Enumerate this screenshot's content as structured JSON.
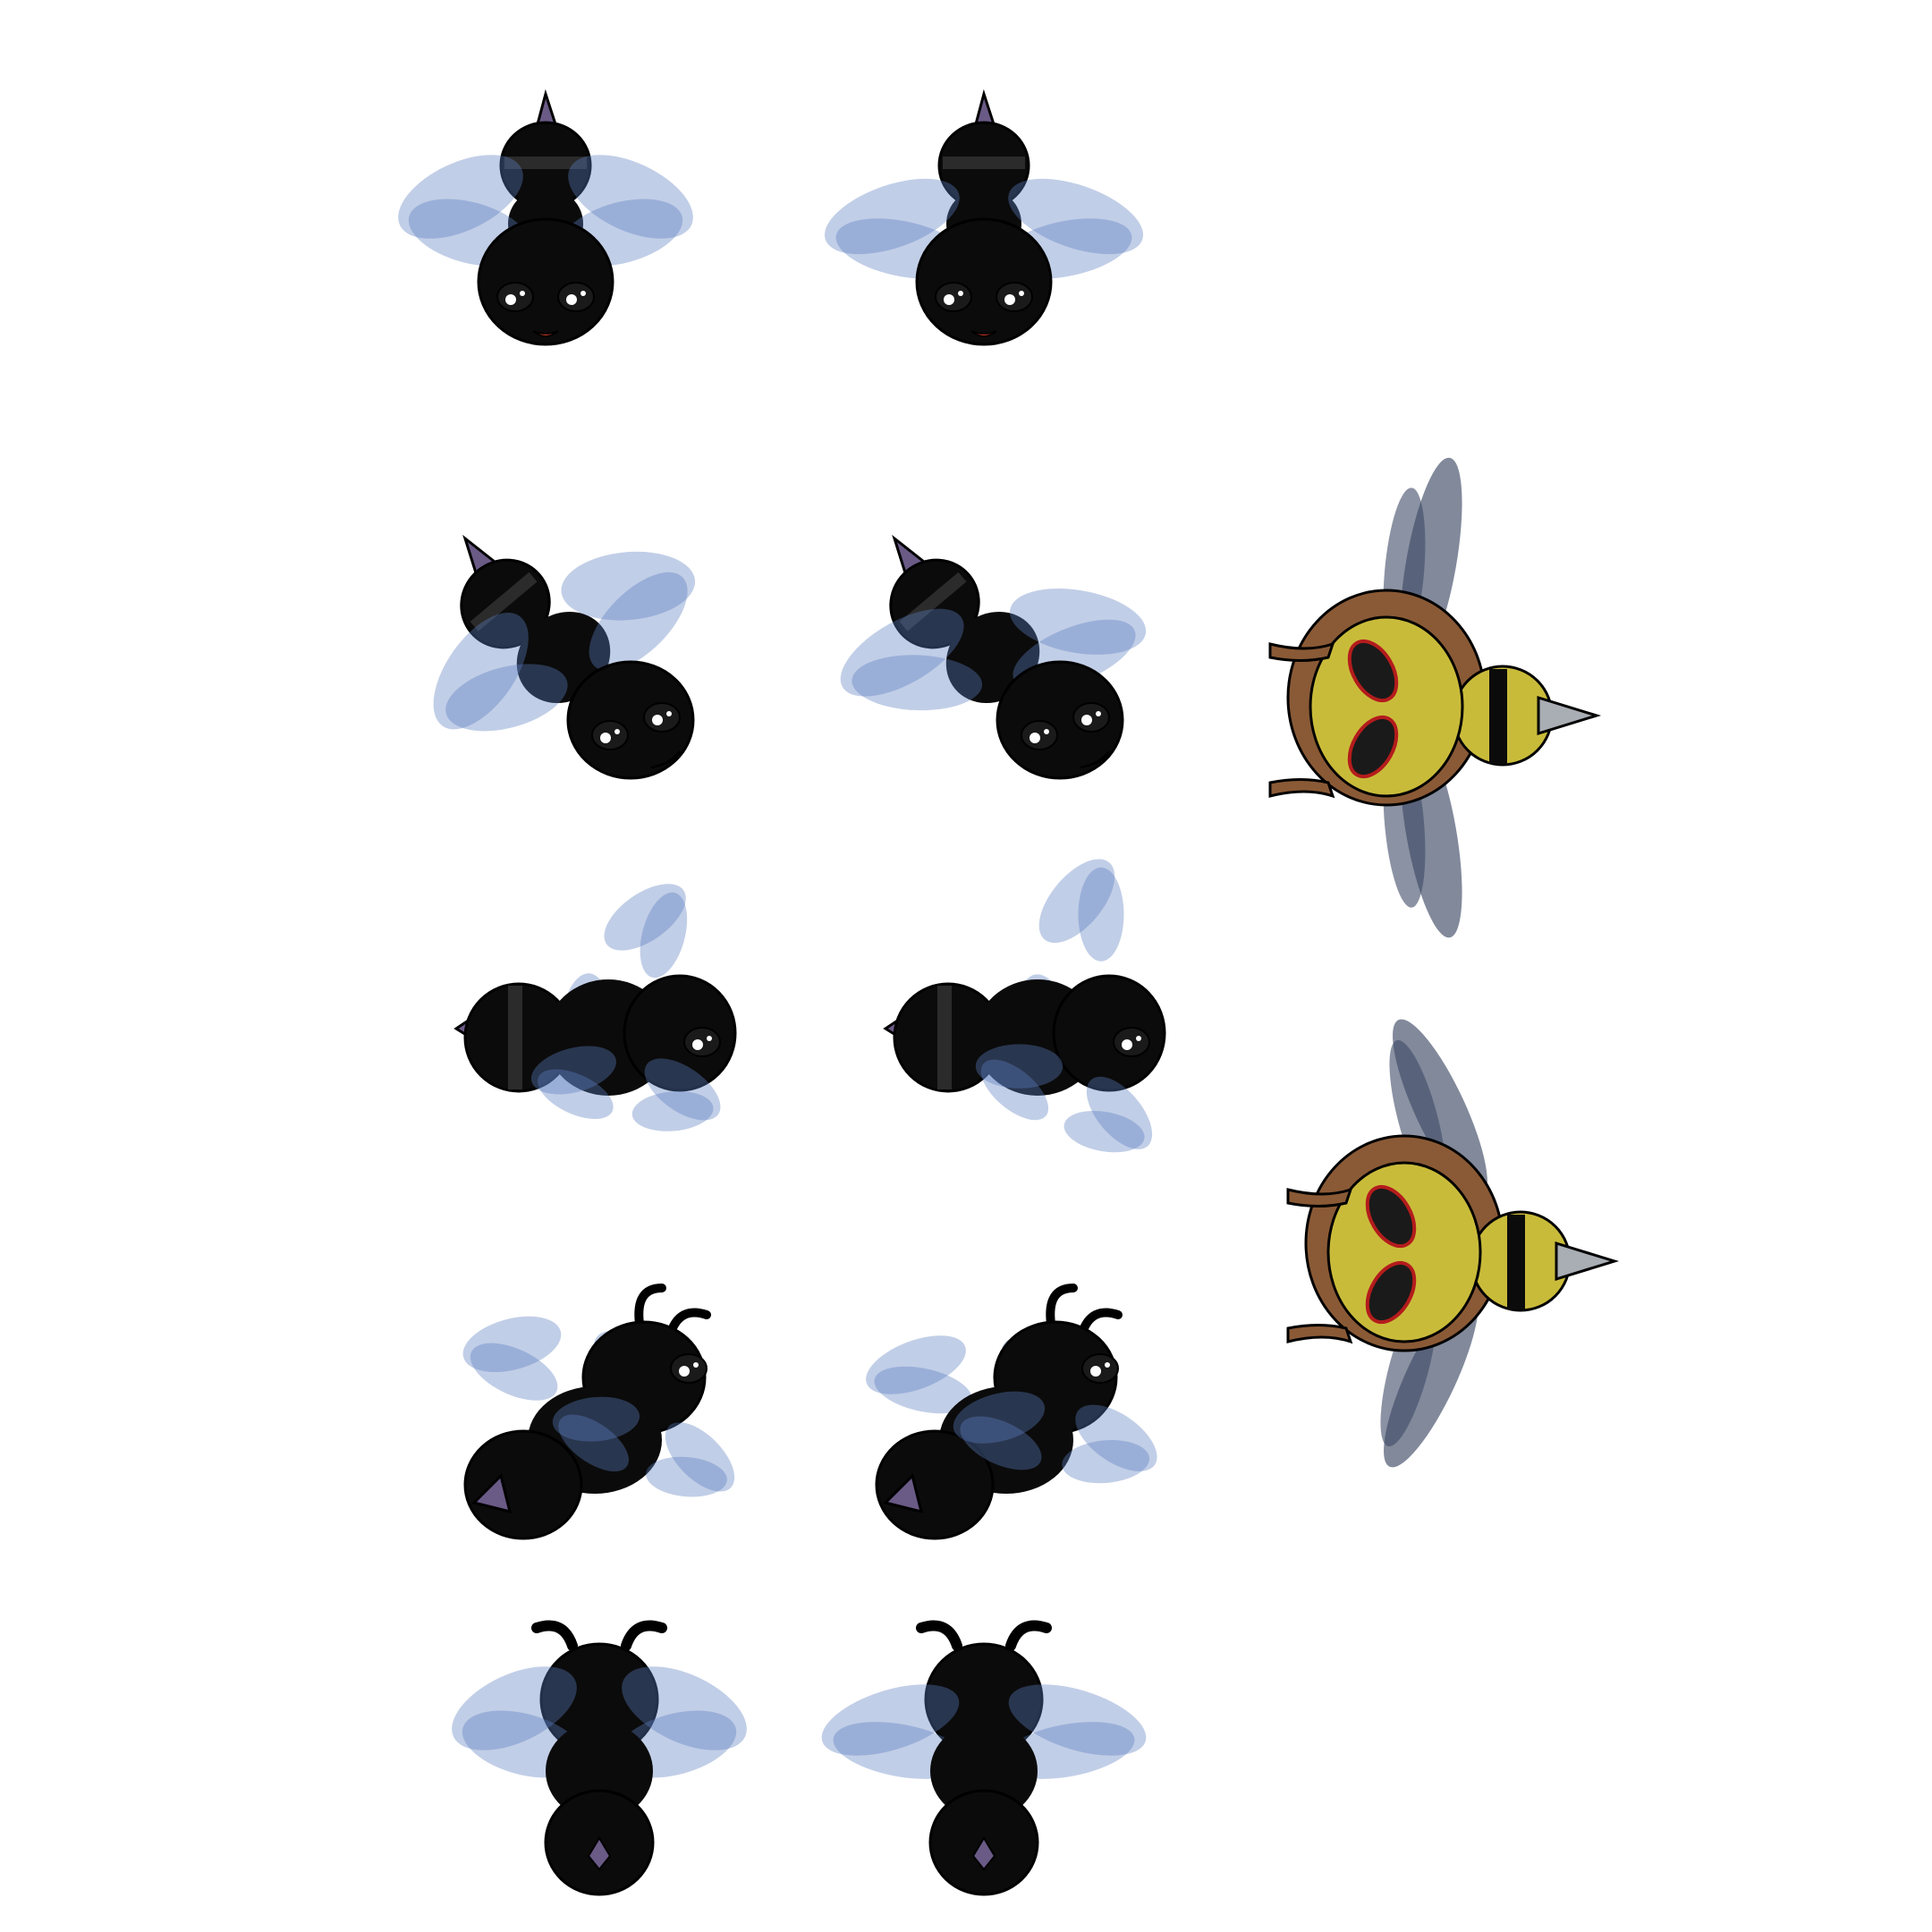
{
  "sheet": {
    "background": "#ffffff",
    "columns": 3,
    "rows": 5
  },
  "palette": {
    "bee_body": "#0b0b0b",
    "bee_stripe": "#2b2b2b",
    "wing": "#5b7fbf",
    "stinger": "#6a5a86",
    "mouth": "#e0402a",
    "yellow": "#c9bb3a",
    "fur": "#8a5a36",
    "dark_wing": "#3d4a66",
    "drill": "#a9adb4"
  },
  "sprites": [
    {
      "id": "black-bee-front",
      "frame": 1,
      "pose": "front"
    },
    {
      "id": "black-bee-front",
      "frame": 2,
      "pose": "front"
    },
    {
      "id": "black-bee-three-quarter-front",
      "frame": 1,
      "pose": "three-quarter-front"
    },
    {
      "id": "black-bee-three-quarter-front",
      "frame": 2,
      "pose": "three-quarter-front"
    },
    {
      "id": "black-bee-side",
      "frame": 1,
      "pose": "side"
    },
    {
      "id": "black-bee-side",
      "frame": 2,
      "pose": "side"
    },
    {
      "id": "black-bee-three-quarter-back",
      "frame": 1,
      "pose": "three-quarter-back"
    },
    {
      "id": "black-bee-three-quarter-back",
      "frame": 2,
      "pose": "three-quarter-back"
    },
    {
      "id": "black-bee-back",
      "frame": 1,
      "pose": "back"
    },
    {
      "id": "black-bee-back",
      "frame": 2,
      "pose": "back"
    },
    {
      "id": "drill-bee",
      "frame": 1,
      "pose": "top-down"
    },
    {
      "id": "drill-bee",
      "frame": 2,
      "pose": "top-down"
    }
  ]
}
